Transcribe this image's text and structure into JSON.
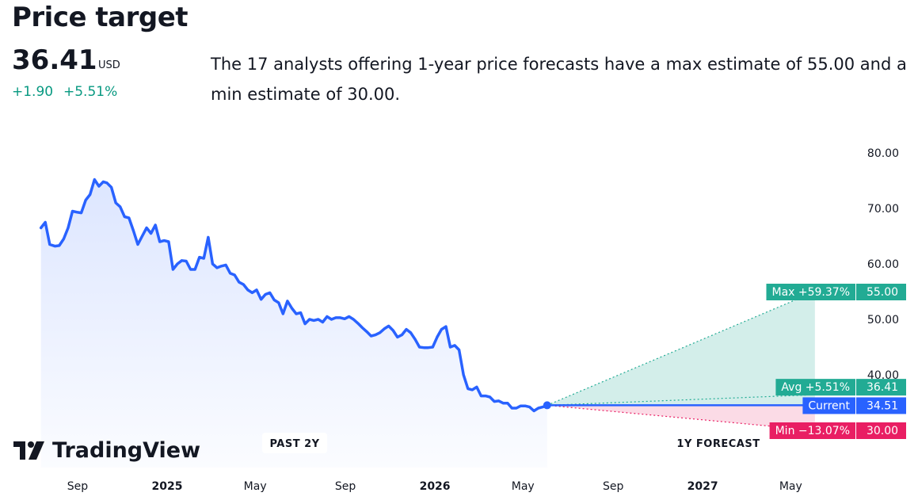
{
  "header": {
    "title": "Price target",
    "price": "36.41",
    "currency": "USD",
    "change_abs": "+1.90",
    "change_pct": "+5.51%",
    "description": "The 17 analysts offering 1-year price forecasts have a max estimate of 55.00 and a min estimate of 30.00."
  },
  "branding": {
    "logo_text": "TradingView"
  },
  "colors": {
    "history_line": "#2962ff",
    "positive": "#22ab94",
    "negative": "#e91e63",
    "current": "#2962ff",
    "text": "#131722"
  },
  "chart_data": {
    "type": "line",
    "ylim": [
      30,
      80
    ],
    "y_ticks": [
      "80.00",
      "70.00",
      "60.00",
      "50.00",
      "40.00"
    ],
    "x_ticks": [
      {
        "label": "Sep",
        "bold": false,
        "date": "2024-09-01"
      },
      {
        "label": "2025",
        "bold": true,
        "date": "2025-01-01"
      },
      {
        "label": "May",
        "bold": false,
        "date": "2025-05-01"
      },
      {
        "label": "Sep",
        "bold": false,
        "date": "2025-09-01"
      },
      {
        "label": "2026",
        "bold": true,
        "date": "2026-01-01"
      },
      {
        "label": "May",
        "bold": false,
        "date": "2026-05-01"
      },
      {
        "label": "Sep",
        "bold": false,
        "date": "2026-09-01"
      },
      {
        "label": "2027",
        "bold": true,
        "date": "2027-01-01"
      },
      {
        "label": "May",
        "bold": false,
        "date": "2027-05-01"
      }
    ],
    "history": {
      "x": [
        "2024-07-13",
        "2024-07-19",
        "2024-07-25",
        "2024-08-01",
        "2024-08-07",
        "2024-08-13",
        "2024-08-19",
        "2024-08-25",
        "2024-09-01",
        "2024-09-06",
        "2024-09-12",
        "2024-09-18",
        "2024-09-24",
        "2024-09-30",
        "2024-10-06",
        "2024-10-11",
        "2024-10-17",
        "2024-10-23",
        "2024-10-29",
        "2024-11-04",
        "2024-11-10",
        "2024-11-16",
        "2024-11-22",
        "2024-11-28",
        "2024-12-04",
        "2024-12-10",
        "2024-12-16",
        "2024-12-22",
        "2024-12-28",
        "2025-01-03",
        "2025-01-09",
        "2025-01-15",
        "2025-01-21",
        "2025-01-27",
        "2025-02-02",
        "2025-02-08",
        "2025-02-14",
        "2025-02-20",
        "2025-02-26",
        "2025-03-04",
        "2025-03-10",
        "2025-03-16",
        "2025-03-22",
        "2025-03-28",
        "2025-04-03",
        "2025-04-09",
        "2025-04-15",
        "2025-04-21",
        "2025-04-27",
        "2025-05-03",
        "2025-05-09",
        "2025-05-15",
        "2025-05-21",
        "2025-05-27",
        "2025-06-02",
        "2025-06-08",
        "2025-06-14",
        "2025-06-20",
        "2025-06-26",
        "2025-07-02",
        "2025-07-08",
        "2025-07-14",
        "2025-07-20",
        "2025-07-26",
        "2025-08-01",
        "2025-08-07",
        "2025-08-13",
        "2025-08-19",
        "2025-08-25",
        "2025-08-31",
        "2025-09-06",
        "2025-09-12",
        "2025-09-18",
        "2025-09-24",
        "2025-09-30",
        "2025-10-06",
        "2025-10-12",
        "2025-10-18",
        "2025-10-24",
        "2025-10-30",
        "2025-11-05",
        "2025-11-11",
        "2025-11-17",
        "2025-11-23",
        "2025-11-29",
        "2025-12-05",
        "2025-12-11",
        "2025-12-17",
        "2025-12-23",
        "2025-12-29",
        "2026-01-04",
        "2026-01-10",
        "2026-01-16",
        "2026-01-22",
        "2026-01-28",
        "2026-02-03",
        "2026-02-09",
        "2026-02-15",
        "2026-02-21",
        "2026-02-27",
        "2026-03-05",
        "2026-03-11",
        "2026-03-17",
        "2026-03-23",
        "2026-03-29",
        "2026-04-04",
        "2026-04-10",
        "2026-04-16",
        "2026-04-22",
        "2026-04-28",
        "2026-05-04",
        "2026-05-10",
        "2026-05-16",
        "2026-05-22",
        "2026-05-28",
        "2026-06-03"
      ],
      "y": [
        66.5,
        67.5,
        63.5,
        63.2,
        63.3,
        64.5,
        66.5,
        69.5,
        69.3,
        69.2,
        71.5,
        72.5,
        75.2,
        74.0,
        74.8,
        74.6,
        73.8,
        71.0,
        70.3,
        68.5,
        68.3,
        66.0,
        63.5,
        65.0,
        66.5,
        65.5,
        67.0,
        64.0,
        64.2,
        64.0,
        59.0,
        60.0,
        60.6,
        60.5,
        59.0,
        59.0,
        61.2,
        61.0,
        64.8,
        60.0,
        59.3,
        59.6,
        59.8,
        58.3,
        58.0,
        56.7,
        56.3,
        55.3,
        54.8,
        55.3,
        53.6,
        54.5,
        54.8,
        53.5,
        53.0,
        51.0,
        53.3,
        52.0,
        51.0,
        51.2,
        49.2,
        50.0,
        49.8,
        50.0,
        49.5,
        50.5,
        50.0,
        50.3,
        50.3,
        50.1,
        50.5,
        50.0,
        49.3,
        48.5,
        47.8,
        47.0,
        47.2,
        47.6,
        48.3,
        48.8,
        48.0,
        46.8,
        47.2,
        48.2,
        47.6,
        46.4,
        45.0,
        44.9,
        44.9,
        45.0,
        46.8,
        48.2,
        48.7,
        45.0,
        45.3,
        44.5,
        40.0,
        37.5,
        37.3,
        37.8,
        36.2,
        36.2,
        36.0,
        35.2,
        35.3,
        34.9,
        34.9,
        34.0,
        34.0,
        34.4,
        34.4,
        34.2,
        33.5,
        34.0,
        34.2,
        34.5
      ]
    },
    "current": {
      "label": "Current",
      "value": "34.51",
      "date": "2026-06-03"
    },
    "forecast": {
      "date": "2027-06-03",
      "max": {
        "label": "Max +59.37%",
        "value": "55.00"
      },
      "avg": {
        "label": "Avg +5.51%",
        "value": "36.41"
      },
      "min": {
        "label": "Min −13.07%",
        "value": "30.00"
      }
    },
    "period_labels": {
      "past": "PAST 2Y",
      "forecast": "1Y FORECAST"
    }
  }
}
